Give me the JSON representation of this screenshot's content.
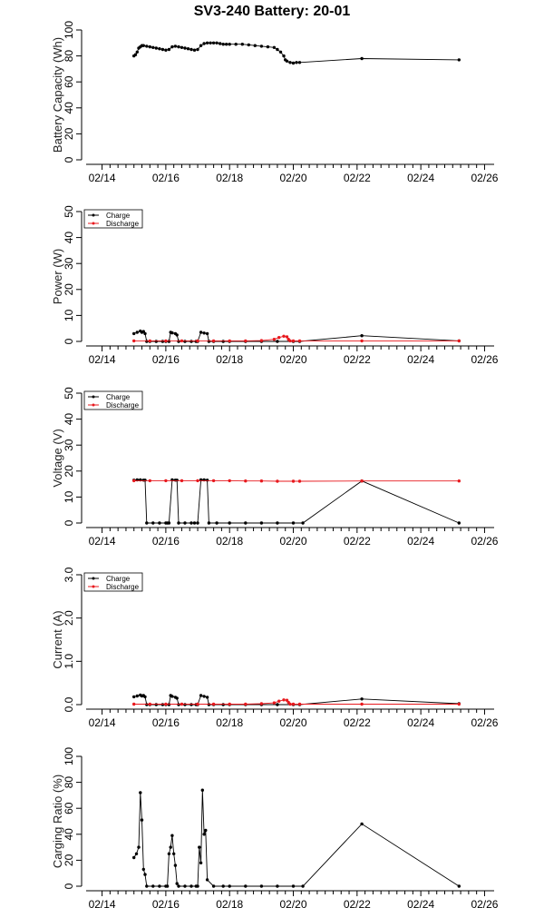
{
  "title": "SV3-240 Battery: 20-01",
  "x_ticks": [
    {
      "t": 14,
      "label": "02/14"
    },
    {
      "t": 16,
      "label": "02/16"
    },
    {
      "t": 18,
      "label": "02/18"
    },
    {
      "t": 20,
      "label": "02/20"
    },
    {
      "t": 22,
      "label": "02/22"
    },
    {
      "t": 24,
      "label": "02/24"
    },
    {
      "t": 26,
      "label": "02/26"
    }
  ],
  "colors": {
    "charge": "#000000",
    "discharge": "#e8191e"
  },
  "legend": {
    "charge": "Charge",
    "discharge": "Discharge"
  },
  "chart_data": [
    {
      "type": "line",
      "ylabel": "Battery Capacity (Wh)",
      "ylim": [
        0,
        100
      ],
      "yticks": [
        0,
        20,
        40,
        60,
        80,
        100
      ],
      "legend": false,
      "series": [
        {
          "key": "charge",
          "x": [
            15.0,
            15.05,
            15.1,
            15.15,
            15.2,
            15.25,
            15.3,
            15.4,
            15.5,
            15.6,
            15.7,
            15.8,
            15.9,
            16.0,
            16.1,
            16.2,
            16.3,
            16.4,
            16.5,
            16.6,
            16.7,
            16.8,
            16.9,
            17.0,
            17.1,
            17.2,
            17.3,
            17.4,
            17.5,
            17.6,
            17.7,
            17.8,
            17.9,
            18.0,
            18.2,
            18.4,
            18.6,
            18.8,
            19.0,
            19.2,
            19.4,
            19.5,
            19.6,
            19.7,
            19.75,
            19.8,
            19.9,
            20.0,
            20.1,
            20.2,
            22.15,
            25.2
          ],
          "y": [
            80,
            81,
            83,
            86,
            87,
            88,
            88,
            87.5,
            87,
            86.5,
            86,
            85.5,
            85,
            84.5,
            85,
            87,
            87.5,
            87,
            86.5,
            86,
            85.5,
            85,
            84.5,
            85,
            88,
            89.5,
            90,
            90,
            90,
            90,
            89.5,
            89,
            89,
            89,
            89,
            89,
            88.5,
            88,
            87.5,
            87,
            86.5,
            85,
            83,
            80,
            77,
            76,
            75,
            74.5,
            75,
            75,
            78,
            77
          ]
        }
      ]
    },
    {
      "type": "line",
      "ylabel": "Power (W)",
      "ylim": [
        0,
        50
      ],
      "yticks": [
        0,
        10,
        20,
        30,
        40,
        50
      ],
      "legend": true,
      "series": [
        {
          "key": "charge",
          "x": [
            15.0,
            15.1,
            15.2,
            15.25,
            15.3,
            15.35,
            15.4,
            15.5,
            15.7,
            15.9,
            16.0,
            16.1,
            16.15,
            16.2,
            16.3,
            16.35,
            16.4,
            16.6,
            16.8,
            16.95,
            17.0,
            17.1,
            17.2,
            17.3,
            17.35,
            17.5,
            17.8,
            18.0,
            18.5,
            19.0,
            19.5,
            20.0,
            20.2,
            22.15,
            25.2
          ],
          "y": [
            3,
            3.5,
            4,
            3.5,
            3.8,
            3,
            0,
            0,
            0,
            0,
            0,
            0,
            3.5,
            3.3,
            3,
            2.5,
            0,
            0,
            0,
            0,
            0,
            3.5,
            3.2,
            3,
            0,
            0,
            0,
            0,
            0,
            0,
            0,
            0,
            0,
            2.2,
            0.2
          ]
        },
        {
          "key": "discharge",
          "x": [
            15.0,
            15.5,
            16.0,
            16.5,
            17.0,
            17.5,
            18.0,
            18.5,
            19.0,
            19.4,
            19.55,
            19.7,
            19.8,
            19.85,
            19.9,
            20.0,
            20.2,
            22.15,
            25.2
          ],
          "y": [
            0.2,
            0.2,
            0.2,
            0.2,
            0.2,
            0.2,
            0.2,
            0.2,
            0.3,
            0.8,
            1.5,
            2,
            1.8,
            0.8,
            0.2,
            0.2,
            0.2,
            0.2,
            0.2
          ]
        }
      ]
    },
    {
      "type": "line",
      "ylabel": "Voltage (V)",
      "ylim": [
        0,
        50
      ],
      "yticks": [
        0,
        10,
        20,
        30,
        40,
        50
      ],
      "legend": true,
      "series": [
        {
          "key": "charge",
          "x": [
            15.0,
            15.1,
            15.2,
            15.3,
            15.35,
            15.4,
            15.6,
            15.8,
            16.0,
            16.05,
            16.1,
            16.2,
            16.3,
            16.35,
            16.4,
            16.6,
            16.8,
            16.9,
            17.0,
            17.1,
            17.2,
            17.3,
            17.35,
            17.6,
            18.0,
            18.5,
            19.0,
            19.5,
            20.0,
            20.3,
            22.15,
            25.2
          ],
          "y": [
            16.5,
            16.6,
            16.6,
            16.5,
            16.5,
            0,
            0,
            0,
            0,
            0,
            0,
            16.6,
            16.5,
            16.5,
            0,
            0,
            0,
            0,
            0,
            16.6,
            16.6,
            16.5,
            0,
            0,
            0,
            0,
            0,
            0,
            0,
            0,
            16.2,
            0
          ]
        },
        {
          "key": "discharge",
          "x": [
            15.0,
            15.5,
            16.0,
            16.5,
            17.0,
            17.5,
            18.0,
            18.5,
            19.0,
            19.5,
            20.0,
            20.2,
            22.15,
            25.2
          ],
          "y": [
            16.3,
            16.3,
            16.3,
            16.3,
            16.3,
            16.3,
            16.3,
            16.2,
            16.2,
            16.1,
            16.1,
            16.1,
            16.2,
            16.2
          ]
        }
      ]
    },
    {
      "type": "line",
      "ylabel": "Current (A)",
      "ylim": [
        0,
        3
      ],
      "yticks": [
        "0.0",
        "1.0",
        "2.0",
        "3.0"
      ],
      "legend": true,
      "series": [
        {
          "key": "charge",
          "x": [
            15.0,
            15.1,
            15.2,
            15.25,
            15.3,
            15.35,
            15.4,
            15.5,
            15.7,
            15.9,
            16.0,
            16.1,
            16.15,
            16.2,
            16.3,
            16.35,
            16.4,
            16.6,
            16.8,
            16.95,
            17.0,
            17.1,
            17.2,
            17.3,
            17.35,
            17.5,
            17.8,
            18.0,
            18.5,
            19.0,
            19.5,
            20.0,
            20.2,
            22.15,
            25.2
          ],
          "y": [
            0.18,
            0.2,
            0.22,
            0.2,
            0.21,
            0.18,
            0,
            0,
            0,
            0,
            0,
            0,
            0.21,
            0.19,
            0.17,
            0.15,
            0,
            0,
            0,
            0,
            0,
            0.21,
            0.19,
            0.17,
            0,
            0,
            0,
            0,
            0,
            0,
            0,
            0,
            0,
            0.13,
            0.02
          ]
        },
        {
          "key": "discharge",
          "x": [
            15.0,
            15.5,
            16.0,
            16.5,
            17.0,
            17.5,
            18.0,
            18.5,
            19.0,
            19.4,
            19.55,
            19.7,
            19.8,
            19.85,
            19.9,
            20.0,
            20.2,
            22.15,
            25.2
          ],
          "y": [
            0.01,
            0.01,
            0.01,
            0.01,
            0.01,
            0.01,
            0.01,
            0.01,
            0.02,
            0.04,
            0.08,
            0.11,
            0.1,
            0.05,
            0.01,
            0.01,
            0.01,
            0.01,
            0.01
          ]
        }
      ]
    },
    {
      "type": "line",
      "ylabel": "Carging Ratio (%)",
      "ylim": [
        0,
        100
      ],
      "yticks": [
        0,
        20,
        40,
        60,
        80,
        100
      ],
      "legend": false,
      "series": [
        {
          "key": "charge",
          "x": [
            15.0,
            15.08,
            15.15,
            15.2,
            15.25,
            15.3,
            15.35,
            15.4,
            15.6,
            15.8,
            16.0,
            16.05,
            16.1,
            16.15,
            16.2,
            16.25,
            16.3,
            16.35,
            16.4,
            16.6,
            16.8,
            16.95,
            17.0,
            17.05,
            17.1,
            17.15,
            17.2,
            17.25,
            17.3,
            17.5,
            17.8,
            18.0,
            18.5,
            19.0,
            19.5,
            20.0,
            20.3,
            22.15,
            25.2
          ],
          "y": [
            22,
            25,
            30,
            72,
            51,
            13,
            9,
            0,
            0,
            0,
            0,
            0,
            25,
            30,
            39,
            25,
            16,
            2,
            0,
            0,
            0,
            0,
            0,
            30,
            18,
            74,
            40,
            43,
            5,
            0,
            0,
            0,
            0,
            0,
            0,
            0,
            0,
            48,
            0
          ]
        }
      ]
    }
  ]
}
